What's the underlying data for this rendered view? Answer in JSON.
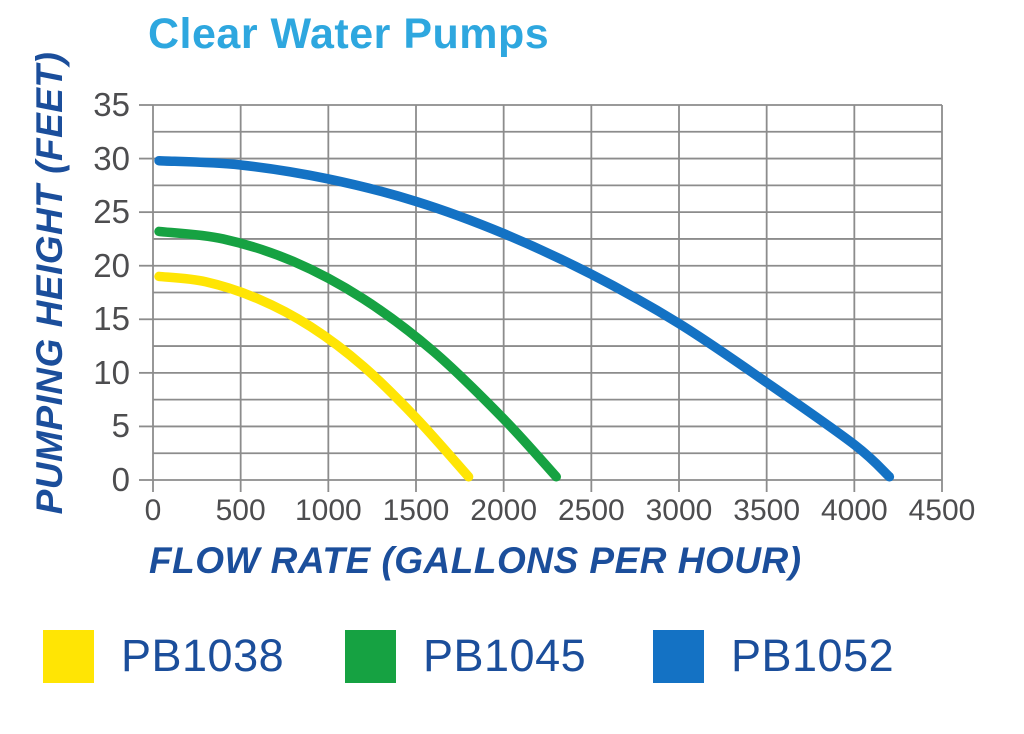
{
  "page": {
    "background": "#FFFFFF"
  },
  "colors": {
    "title_blue": "#2EA7DF",
    "dark_blue_text": "#1B4E9B",
    "grid_gray": "#8C8C8C",
    "tick_text_gray": "#4D4D4F",
    "yellow": "#FFE504",
    "green": "#16A242",
    "blue": "#1472C4"
  },
  "chart_data": {
    "type": "line",
    "title": "Clear Water Pumps",
    "xlabel": "FLOW RATE (GALLONS PER HOUR)",
    "ylabel": "PUMPING HEIGHT (FEET)",
    "xlim": [
      0,
      4500
    ],
    "ylim": [
      0,
      35
    ],
    "x_ticks": [
      0,
      500,
      1000,
      1500,
      2000,
      2500,
      3000,
      3500,
      4000,
      4500
    ],
    "y_ticks": [
      0,
      5,
      10,
      15,
      20,
      25,
      30,
      35
    ],
    "x_grid_step": 500,
    "y_grid_step": 2.5,
    "grid": true,
    "legend_position": "bottom",
    "series": [
      {
        "name": "PB1038",
        "color": "#FFE504",
        "shutoff_head_ft": 19,
        "max_flow_gph": 1800,
        "points": [
          [
            0,
            19
          ],
          [
            300,
            18.5
          ],
          [
            600,
            16.9
          ],
          [
            900,
            14.3
          ],
          [
            1200,
            10.6
          ],
          [
            1500,
            5.8
          ],
          [
            1800,
            0.3
          ]
        ]
      },
      {
        "name": "PB1045",
        "color": "#16A242",
        "shutoff_head_ft": 23.2,
        "max_flow_gph": 2300,
        "points": [
          [
            0,
            23.2
          ],
          [
            400,
            22.5
          ],
          [
            800,
            20.4
          ],
          [
            1200,
            16.9
          ],
          [
            1600,
            12
          ],
          [
            2000,
            5.7
          ],
          [
            2300,
            0.3
          ]
        ]
      },
      {
        "name": "PB1052",
        "color": "#1472C4",
        "shutoff_head_ft": 29.8,
        "max_flow_gph": 4200,
        "points": [
          [
            0,
            29.8
          ],
          [
            500,
            29.4
          ],
          [
            1000,
            28.1
          ],
          [
            1500,
            26
          ],
          [
            2000,
            23
          ],
          [
            2500,
            19.2
          ],
          [
            3000,
            14.6
          ],
          [
            3500,
            9.1
          ],
          [
            4000,
            3.3
          ],
          [
            4200,
            0.3
          ]
        ]
      }
    ],
    "legend": [
      {
        "label": "PB1038",
        "color": "#FFE504"
      },
      {
        "label": "PB1045",
        "color": "#16A242"
      },
      {
        "label": "PB1052",
        "color": "#1472C4"
      }
    ]
  }
}
